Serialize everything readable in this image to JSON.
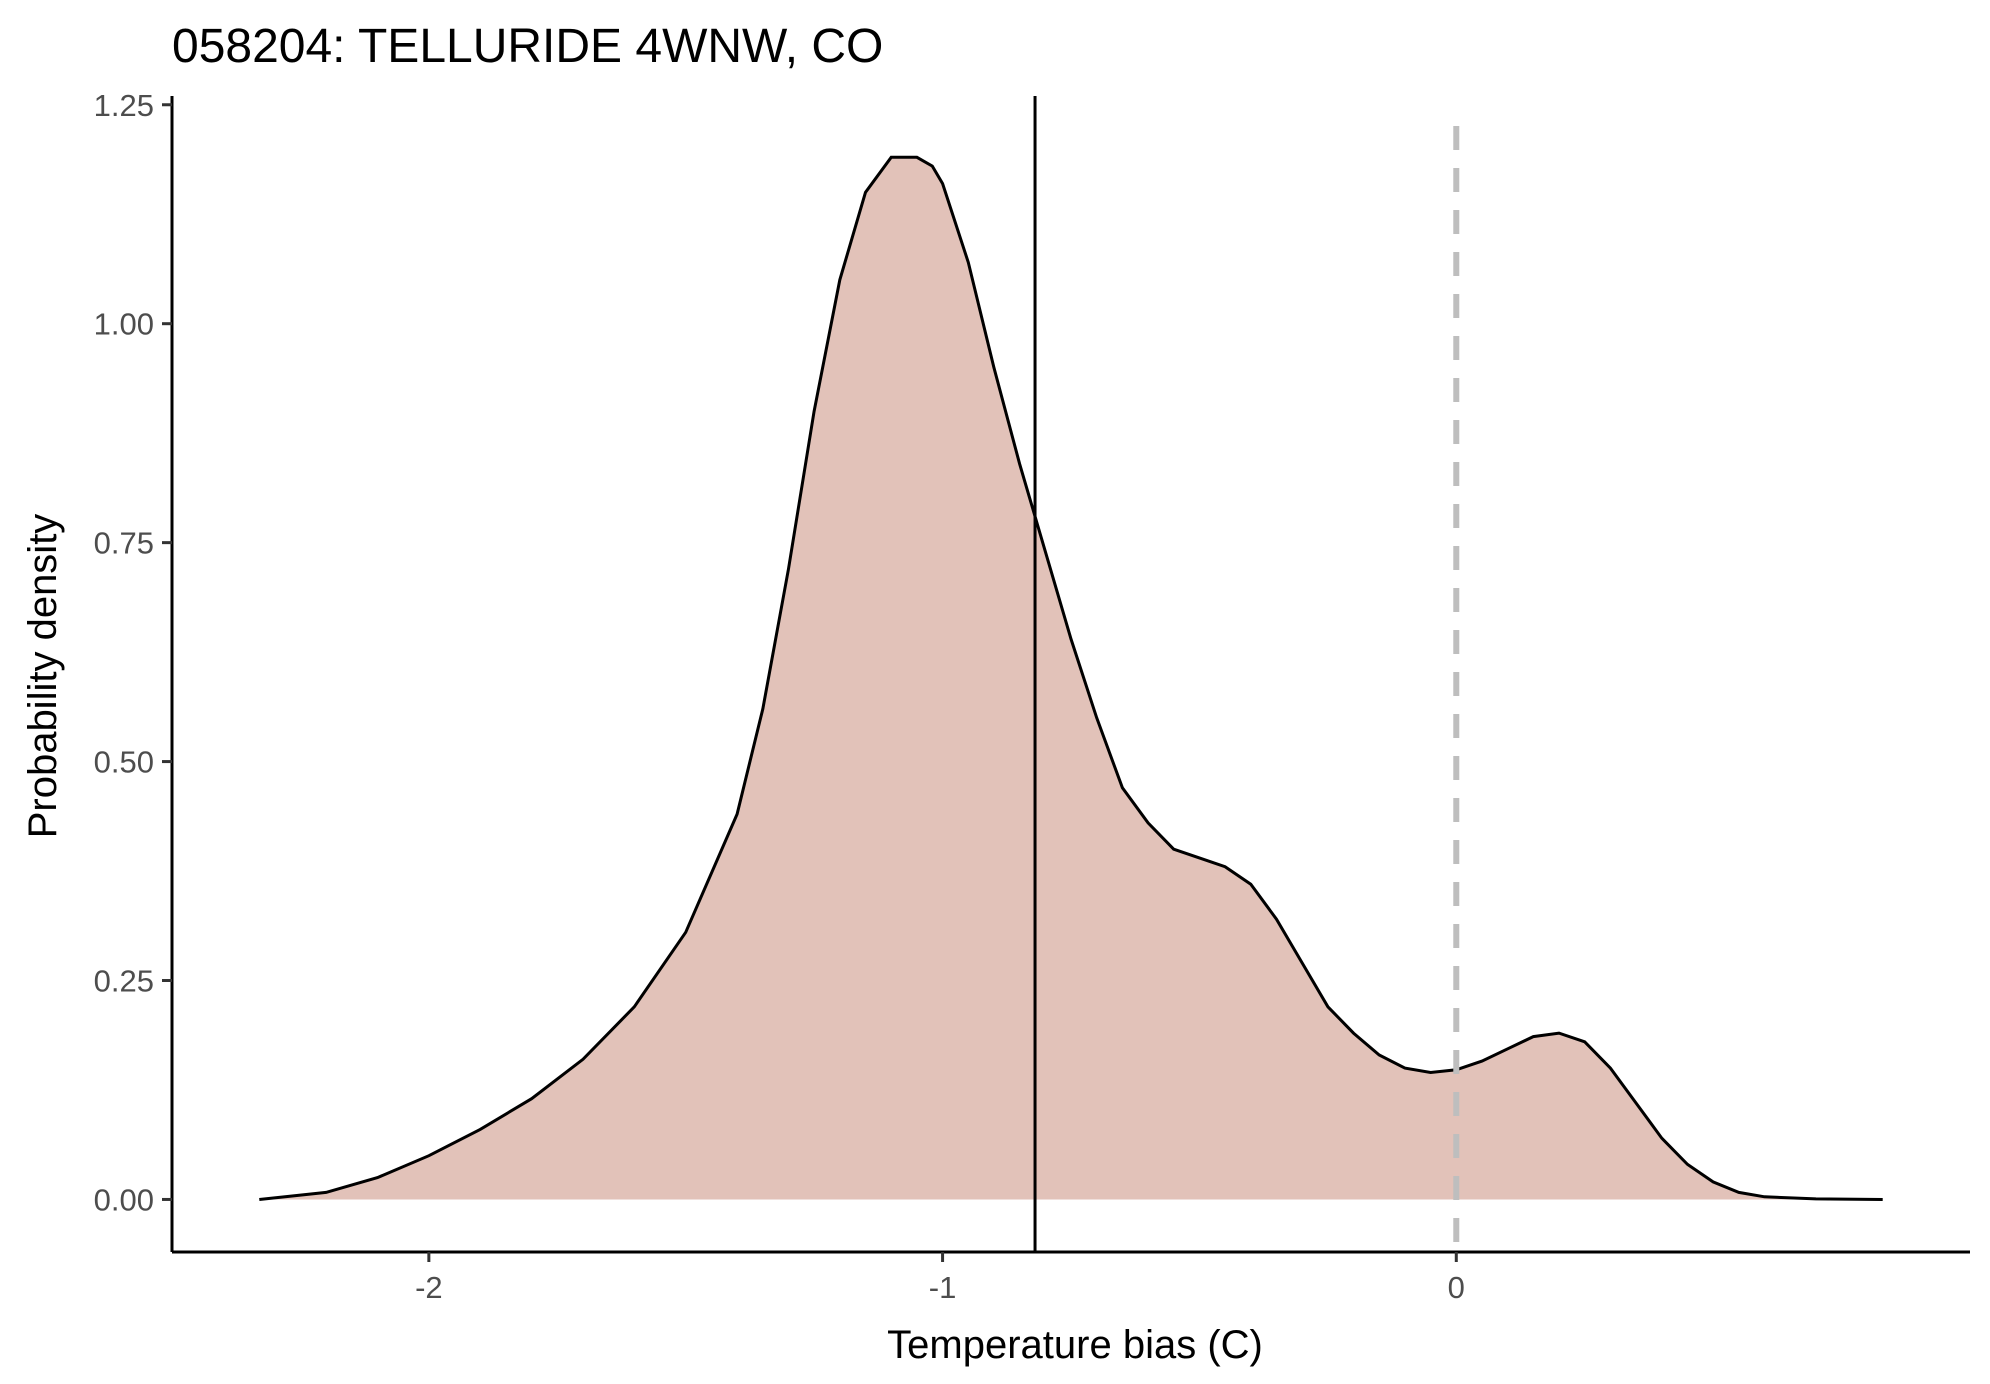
{
  "chart_data": {
    "type": "area",
    "title": "058204: TELLURIDE 4WNW, CO",
    "xlabel": "Temperature bias (C)",
    "ylabel": "Probability density",
    "xlim": [
      -2.5,
      1.0
    ],
    "ylim": [
      -0.06,
      1.26
    ],
    "x_ticks": [
      -2,
      -1,
      0
    ],
    "x_tick_labels": [
      "-2",
      "-1",
      "0"
    ],
    "y_ticks": [
      0,
      0.25,
      0.5,
      0.75,
      1.0,
      1.25
    ],
    "y_tick_labels": [
      "0.00",
      "0.25",
      "0.50",
      "0.75",
      "1.00",
      "1.25"
    ],
    "grid": false,
    "fill_color": "#e2c2b9",
    "line_color": "#000000",
    "density": {
      "x": [
        -2.33,
        -2.2,
        -2.1,
        -2.0,
        -1.9,
        -1.8,
        -1.7,
        -1.6,
        -1.5,
        -1.4,
        -1.35,
        -1.3,
        -1.25,
        -1.2,
        -1.15,
        -1.1,
        -1.05,
        -1.02,
        -1.0,
        -0.95,
        -0.9,
        -0.85,
        -0.8,
        -0.75,
        -0.7,
        -0.65,
        -0.6,
        -0.55,
        -0.5,
        -0.45,
        -0.4,
        -0.35,
        -0.3,
        -0.25,
        -0.2,
        -0.15,
        -0.1,
        -0.05,
        0.0,
        0.05,
        0.1,
        0.15,
        0.2,
        0.25,
        0.3,
        0.35,
        0.4,
        0.45,
        0.5,
        0.55,
        0.6,
        0.7,
        0.83
      ],
      "y": [
        0.0,
        0.008,
        0.025,
        0.05,
        0.08,
        0.115,
        0.16,
        0.22,
        0.305,
        0.44,
        0.56,
        0.72,
        0.9,
        1.05,
        1.15,
        1.19,
        1.19,
        1.18,
        1.16,
        1.07,
        0.95,
        0.84,
        0.74,
        0.64,
        0.55,
        0.47,
        0.43,
        0.4,
        0.39,
        0.38,
        0.36,
        0.32,
        0.27,
        0.22,
        0.19,
        0.165,
        0.15,
        0.145,
        0.148,
        0.158,
        0.172,
        0.186,
        0.19,
        0.18,
        0.15,
        0.11,
        0.07,
        0.04,
        0.02,
        0.008,
        0.003,
        0.0006,
        0.0
      ]
    },
    "vlines": [
      {
        "x": -0.82,
        "style": "solid",
        "color": "#000000"
      },
      {
        "x": 0.0,
        "style": "dashed",
        "color": "#bebebe"
      }
    ]
  }
}
